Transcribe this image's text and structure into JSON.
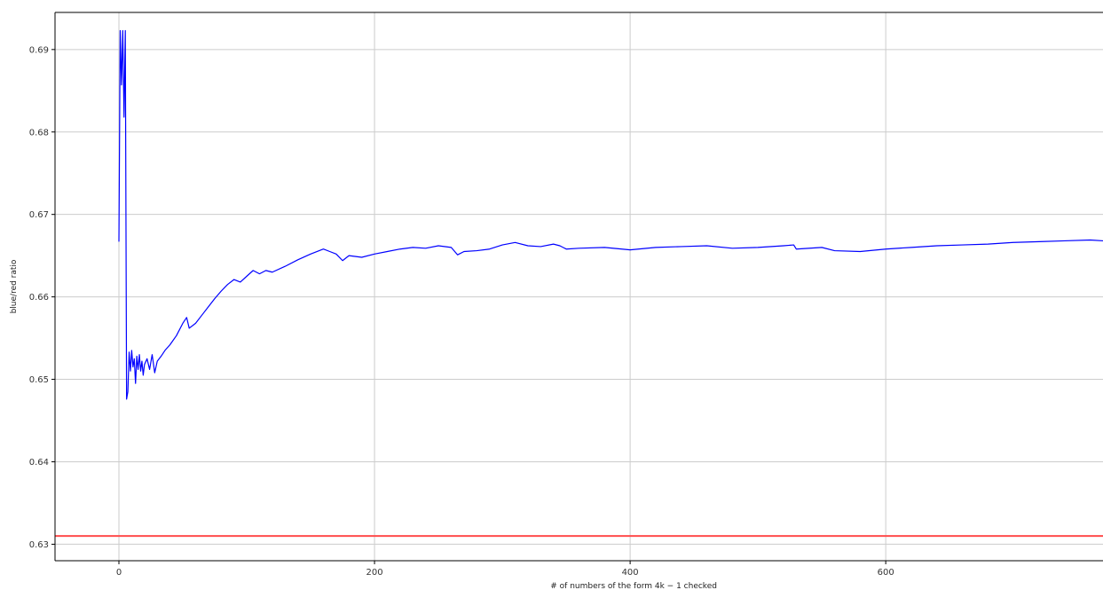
{
  "chart_data": {
    "type": "line",
    "title": "",
    "xlabel": "# of numbers of the form 4k − 1 checked",
    "ylabel": "blue/red ratio",
    "xlim": [
      -50,
      770
    ],
    "ylim": [
      0.628,
      0.6945
    ],
    "grid": true,
    "x_ticks": [
      0,
      200,
      400,
      600
    ],
    "y_ticks": [
      0.63,
      0.64,
      0.65,
      0.66,
      0.67,
      0.68,
      0.69
    ],
    "x_tick_labels": [
      "0",
      "200",
      "400",
      "600"
    ],
    "y_tick_labels": [
      "0.63",
      "0.64",
      "0.65",
      "0.66",
      "0.67",
      "0.68",
      "0.69"
    ],
    "series": [
      {
        "color": "#0000ff",
        "x": [
          0,
          1,
          2,
          3,
          4,
          5,
          6,
          7,
          8,
          9,
          10,
          11,
          12,
          13,
          14,
          15,
          16,
          17,
          18,
          19,
          20,
          22,
          24,
          26,
          28,
          30,
          33,
          36,
          40,
          45,
          50,
          53,
          55,
          60,
          65,
          70,
          75,
          80,
          85,
          90,
          95,
          100,
          105,
          110,
          115,
          120,
          130,
          140,
          150,
          160,
          165,
          170,
          175,
          180,
          190,
          200,
          210,
          220,
          230,
          240,
          250,
          260,
          265,
          270,
          280,
          290,
          300,
          310,
          320,
          330,
          340,
          345,
          350,
          360,
          380,
          400,
          420,
          440,
          460,
          480,
          500,
          520,
          528,
          530,
          550,
          560,
          580,
          600,
          620,
          640,
          660,
          680,
          700,
          720,
          740,
          760,
          770
        ],
        "y": [
          0.6667,
          0.6923,
          0.6857,
          0.6923,
          0.6818,
          0.6923,
          0.6476,
          0.6485,
          0.6533,
          0.651,
          0.6535,
          0.6515,
          0.6525,
          0.6495,
          0.6528,
          0.6512,
          0.653,
          0.651,
          0.6522,
          0.6505,
          0.6518,
          0.6525,
          0.6512,
          0.653,
          0.6508,
          0.6522,
          0.6528,
          0.6535,
          0.6542,
          0.6553,
          0.6568,
          0.6575,
          0.6562,
          0.6568,
          0.6578,
          0.6588,
          0.6598,
          0.6607,
          0.6615,
          0.6621,
          0.6618,
          0.6625,
          0.6632,
          0.6628,
          0.6632,
          0.663,
          0.6637,
          0.6645,
          0.6652,
          0.6658,
          0.6655,
          0.6652,
          0.6644,
          0.665,
          0.6648,
          0.6652,
          0.6655,
          0.6658,
          0.666,
          0.6659,
          0.6662,
          0.666,
          0.6651,
          0.6655,
          0.6656,
          0.6658,
          0.6663,
          0.6666,
          0.6662,
          0.6661,
          0.6664,
          0.6662,
          0.6658,
          0.6659,
          0.666,
          0.6657,
          0.666,
          0.6661,
          0.6662,
          0.6659,
          0.666,
          0.6662,
          0.6663,
          0.6658,
          0.666,
          0.6656,
          0.6655,
          0.6658,
          0.666,
          0.6662,
          0.6663,
          0.6664,
          0.6666,
          0.6667,
          0.6668,
          0.6669,
          0.6668
        ]
      },
      {
        "color": "#ff4c4c",
        "x": [
          -50,
          770
        ],
        "y": [
          0.631,
          0.631
        ]
      }
    ]
  }
}
